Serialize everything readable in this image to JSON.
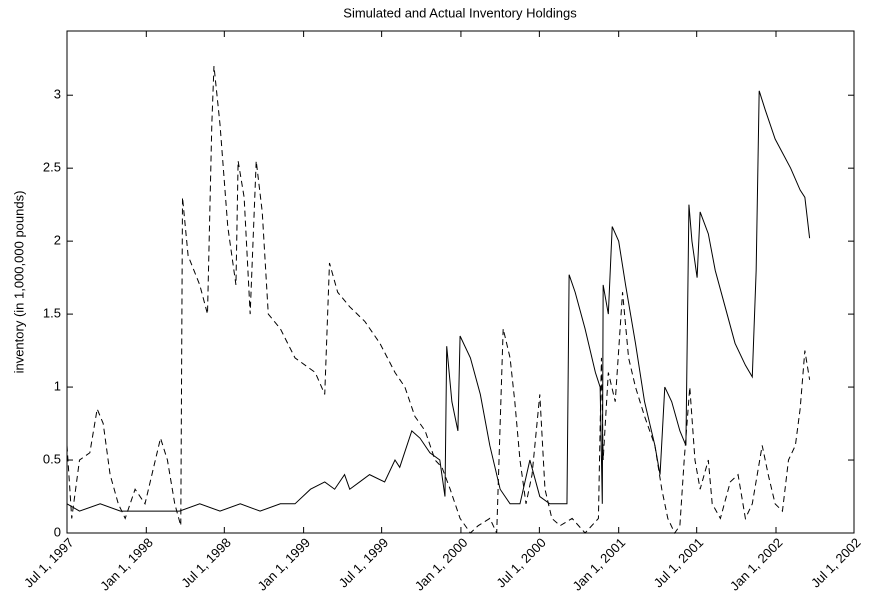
{
  "chart_data": {
    "type": "line",
    "title": "Simulated and Actual Inventory Holdings",
    "ylabel": "inventory (in 1,000,000 pounds)",
    "xlim": [
      "1997-07-01",
      "2002-07-01"
    ],
    "xticks": [
      {
        "value": "1997-07-01",
        "label": "Jul 1, 1997"
      },
      {
        "value": "1998-01-01",
        "label": "Jan 1, 1998"
      },
      {
        "value": "1998-07-01",
        "label": "Jul 1, 1998"
      },
      {
        "value": "1999-01-01",
        "label": "Jan 1, 1999"
      },
      {
        "value": "1999-07-01",
        "label": "Jul 1, 1999"
      },
      {
        "value": "2000-01-01",
        "label": "Jan 1, 2000"
      },
      {
        "value": "2000-07-01",
        "label": "Jul 1, 2000"
      },
      {
        "value": "2001-01-01",
        "label": "Jan 1, 2001"
      },
      {
        "value": "2001-07-01",
        "label": "Jul 1, 2001"
      },
      {
        "value": "2002-01-01",
        "label": "Jan 1, 2002"
      },
      {
        "value": "2002-07-01",
        "label": "Jul 1, 2002"
      }
    ],
    "ylim": [
      0,
      3.44
    ],
    "yticks": [
      0,
      0.5,
      1,
      1.5,
      2,
      2.5,
      3
    ],
    "grid": false,
    "series": [
      {
        "color": "#000000",
        "dash": "solid",
        "x": [
          "1997-07-01",
          "1997-07-30",
          "1997-09-16",
          "1997-11-02",
          "1997-12-18",
          "1998-02-03",
          "1998-03-19",
          "1998-05-05",
          "1998-06-21",
          "1998-08-07",
          "1998-09-22",
          "1998-11-08",
          "1998-12-12",
          "1999-01-17",
          "1999-02-19",
          "1999-03-14",
          "1999-04-06",
          "1999-04-18",
          "1999-05-11",
          "1999-06-03",
          "1999-07-08",
          "1999-08-01",
          "1999-08-12",
          "1999-09-09",
          "1999-09-28",
          "1999-10-21",
          "1999-11-13",
          "1999-11-25",
          "1999-11-29",
          "1999-12-11",
          "1999-12-25",
          "1999-12-30",
          "2000-01-23",
          "2000-02-15",
          "2000-03-08",
          "2000-04-01",
          "2000-04-24",
          "2000-05-17",
          "2000-06-09",
          "2000-07-02",
          "2000-07-25",
          "2000-08-18",
          "2000-09-03",
          "2000-09-08",
          "2000-09-22",
          "2000-10-15",
          "2000-11-08",
          "2000-11-19",
          "2000-11-24",
          "2000-11-26",
          "2000-12-08",
          "2000-12-17",
          "2001-01-01",
          "2001-01-17",
          "2001-02-09",
          "2001-03-02",
          "2001-03-26",
          "2001-04-07",
          "2001-04-18",
          "2001-05-04",
          "2001-05-23",
          "2001-06-06",
          "2001-06-13",
          "2001-06-20",
          "2001-07-02",
          "2001-07-09",
          "2001-07-28",
          "2001-08-13",
          "2001-09-05",
          "2001-09-28",
          "2001-10-22",
          "2001-11-07",
          "2001-11-16",
          "2001-11-23",
          "2001-12-07",
          "2001-12-30",
          "2002-02-04",
          "2002-02-26",
          "2002-03-09",
          "2002-03-20"
        ],
        "values": [
          0.2,
          0.15,
          0.2,
          0.15,
          0.15,
          0.15,
          0.15,
          0.2,
          0.15,
          0.2,
          0.15,
          0.2,
          0.2,
          0.3,
          0.35,
          0.3,
          0.4,
          0.3,
          0.35,
          0.4,
          0.35,
          0.5,
          0.45,
          0.7,
          0.65,
          0.55,
          0.5,
          0.25,
          1.28,
          0.9,
          0.7,
          1.35,
          1.2,
          0.95,
          0.6,
          0.3,
          0.2,
          0.2,
          0.5,
          0.25,
          0.2,
          0.2,
          0.2,
          1.77,
          1.65,
          1.4,
          1.1,
          1.0,
          0.2,
          1.7,
          1.5,
          2.1,
          2.0,
          1.7,
          1.3,
          0.9,
          0.6,
          0.4,
          1.0,
          0.9,
          0.7,
          0.6,
          2.25,
          2.0,
          1.75,
          2.2,
          2.05,
          1.8,
          1.55,
          1.3,
          1.15,
          1.07,
          1.8,
          3.03,
          2.9,
          2.7,
          2.5,
          2.35,
          2.3,
          2.02
        ]
      },
      {
        "color": "#000000",
        "dash": "dashed",
        "x": [
          "1997-07-01",
          "1997-07-12",
          "1997-07-30",
          "1997-08-23",
          "1997-09-09",
          "1997-09-23",
          "1997-10-09",
          "1997-10-28",
          "1997-11-13",
          "1997-12-06",
          "1997-12-29",
          "1998-02-03",
          "1998-02-19",
          "1998-03-08",
          "1998-03-22",
          "1998-03-26",
          "1998-04-08",
          "1998-05-05",
          "1998-05-23",
          "1998-06-02",
          "1998-06-07",
          "1998-06-21",
          "1998-07-09",
          "1998-07-28",
          "1998-08-02",
          "1998-08-16",
          "1998-08-30",
          "1998-09-13",
          "1998-09-27",
          "1998-10-11",
          "1998-11-08",
          "1998-12-12",
          "1999-01-28",
          "1999-02-19",
          "1999-03-02",
          "1999-03-21",
          "1999-04-18",
          "1999-05-23",
          "1999-06-27",
          "1999-08-01",
          "1999-08-24",
          "1999-09-16",
          "1999-10-10",
          "1999-11-02",
          "1999-11-18",
          "1999-12-07",
          "1999-12-30",
          "2000-01-23",
          "2000-02-10",
          "2000-03-08",
          "2000-03-24",
          "2000-04-08",
          "2000-04-24",
          "2000-05-05",
          "2000-05-17",
          "2000-05-31",
          "2000-06-14",
          "2000-07-02",
          "2000-07-14",
          "2000-07-30",
          "2000-08-18",
          "2000-09-15",
          "2000-10-15",
          "2000-11-15",
          "2000-11-22",
          "2000-11-26",
          "2000-12-08",
          "2000-12-24",
          "2001-01-10",
          "2001-01-24",
          "2001-02-09",
          "2001-03-02",
          "2001-03-26",
          "2001-04-11",
          "2001-04-25",
          "2001-05-11",
          "2001-05-23",
          "2001-06-02",
          "2001-06-15",
          "2001-06-27",
          "2001-07-09",
          "2001-07-28",
          "2001-08-06",
          "2001-08-25",
          "2001-09-17",
          "2001-10-05",
          "2001-10-22",
          "2001-11-07",
          "2001-11-30",
          "2001-12-14",
          "2001-12-30",
          "2002-01-16",
          "2002-01-30",
          "2002-02-15",
          "2002-02-26",
          "2002-03-09",
          "2002-03-20"
        ],
        "values": [
          0.6,
          0.1,
          0.5,
          0.55,
          0.85,
          0.75,
          0.4,
          0.2,
          0.1,
          0.3,
          0.2,
          0.65,
          0.5,
          0.2,
          0.05,
          2.3,
          1.9,
          1.7,
          1.5,
          2.8,
          3.2,
          2.8,
          2.1,
          1.7,
          2.55,
          2.3,
          1.5,
          2.55,
          2.2,
          1.5,
          1.4,
          1.2,
          1.1,
          0.95,
          1.85,
          1.65,
          1.55,
          1.45,
          1.3,
          1.1,
          1.0,
          0.8,
          0.7,
          0.5,
          0.45,
          0.3,
          0.1,
          0.0,
          0.05,
          0.1,
          0.0,
          1.4,
          1.2,
          0.9,
          0.5,
          0.2,
          0.4,
          0.95,
          0.3,
          0.1,
          0.05,
          0.1,
          0.0,
          0.1,
          1.2,
          0.5,
          1.1,
          0.9,
          1.65,
          1.2,
          1.0,
          0.8,
          0.6,
          0.3,
          0.1,
          0.0,
          0.05,
          0.5,
          1.0,
          0.5,
          0.3,
          0.5,
          0.2,
          0.1,
          0.35,
          0.4,
          0.1,
          0.2,
          0.6,
          0.4,
          0.2,
          0.15,
          0.5,
          0.6,
          0.85,
          1.25,
          1.05
        ]
      }
    ]
  }
}
